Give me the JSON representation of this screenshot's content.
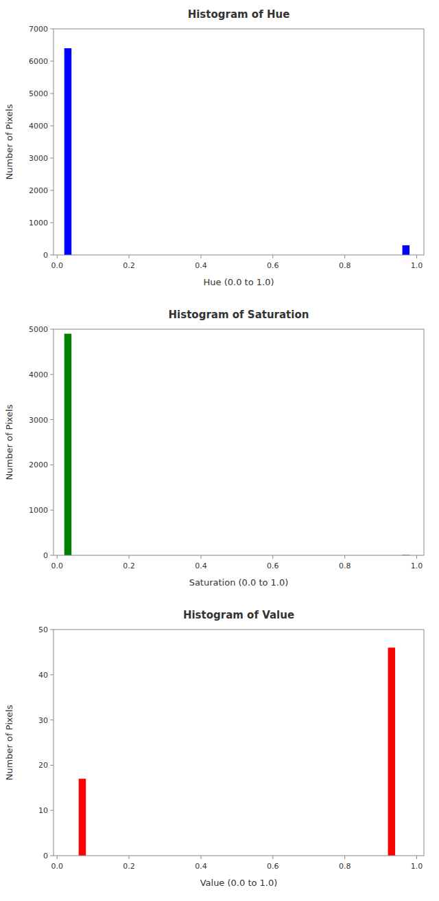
{
  "chart_data": [
    {
      "type": "histogram",
      "title": "Histogram of Hue",
      "xlabel": "Hue (0.0 to 1.0)",
      "ylabel": "Number of Pixels",
      "color": "#0000ff",
      "bins": [
        0,
        0.02,
        0.04,
        0.06,
        0.08,
        0.1,
        0.12,
        0.14,
        0.16,
        0.18,
        0.2,
        0.22,
        0.24,
        0.26,
        0.28,
        0.3,
        0.32,
        0.34,
        0.36,
        0.38,
        0.4,
        0.42,
        0.44,
        0.46,
        0.48,
        0.5,
        0.52,
        0.54,
        0.56,
        0.58,
        0.6,
        0.62,
        0.64,
        0.66,
        0.68,
        0.7,
        0.72,
        0.74,
        0.76,
        0.78,
        0.8,
        0.82,
        0.84,
        0.86,
        0.88,
        0.9,
        0.92,
        0.94,
        0.96,
        0.98,
        1
      ],
      "values": [
        0,
        6400,
        0,
        0,
        0,
        0,
        0,
        0,
        0,
        0,
        0,
        0,
        0,
        0,
        0,
        0,
        0,
        0,
        0,
        0,
        0,
        0,
        0,
        0,
        0,
        0,
        0,
        0,
        0,
        0,
        0,
        0,
        0,
        0,
        0,
        0,
        0,
        0,
        0,
        0,
        0,
        0,
        0,
        0,
        0,
        0,
        0,
        0,
        300,
        0
      ],
      "xlim": [
        -0.01,
        1.02
      ],
      "xticks": [
        {
          "value": 0,
          "label": "0.0"
        },
        0.2,
        0.4,
        0.6,
        0.8,
        {
          "value": 1,
          "label": "1.0"
        }
      ],
      "ylim": [
        0,
        7000
      ],
      "yticks": [
        0,
        1000,
        2000,
        3000,
        4000,
        5000,
        6000,
        7000
      ],
      "grid": false
    },
    {
      "type": "histogram",
      "title": "Histogram of Saturation",
      "xlabel": "Saturation (0.0 to 1.0)",
      "ylabel": "Number of Pixels",
      "color": "#008000",
      "bins": [
        0,
        0.02,
        0.04,
        0.06,
        0.08,
        0.1,
        0.12,
        0.14,
        0.16,
        0.18,
        0.2,
        0.22,
        0.24,
        0.26,
        0.28,
        0.3,
        0.32,
        0.34,
        0.36,
        0.38,
        0.4,
        0.42,
        0.44,
        0.46,
        0.48,
        0.5,
        0.52,
        0.54,
        0.56,
        0.58,
        0.6,
        0.62,
        0.64,
        0.66,
        0.68,
        0.7,
        0.72,
        0.74,
        0.76,
        0.78,
        0.8,
        0.82,
        0.84,
        0.86,
        0.88,
        0.9,
        0.92,
        0.94,
        0.96,
        0.98,
        1
      ],
      "values": [
        0,
        4900,
        0,
        0,
        0,
        0,
        0,
        0,
        0,
        0,
        0,
        0,
        0,
        0,
        0,
        0,
        0,
        0,
        0,
        0,
        0,
        0,
        0,
        0,
        0,
        0,
        0,
        0,
        0,
        0,
        0,
        0,
        0,
        0,
        0,
        0,
        0,
        0,
        0,
        0,
        0,
        0,
        0,
        0,
        0,
        0,
        0,
        0,
        10,
        0
      ],
      "xlim": [
        -0.01,
        1.02
      ],
      "xticks": [
        {
          "value": 0,
          "label": "0.0"
        },
        0.2,
        0.4,
        0.6,
        0.8,
        {
          "value": 1,
          "label": "1.0"
        }
      ],
      "ylim": [
        0,
        5000
      ],
      "yticks": [
        0,
        1000,
        2000,
        3000,
        4000,
        5000
      ],
      "grid": false
    },
    {
      "type": "histogram",
      "title": "Histogram of Value",
      "xlabel": "Value (0.0 to 1.0)",
      "ylabel": "Number of Pixels",
      "color": "#ff0000",
      "bins": [
        0,
        0.02,
        0.04,
        0.06,
        0.08,
        0.1,
        0.12,
        0.14,
        0.16,
        0.18,
        0.2,
        0.22,
        0.24,
        0.26,
        0.28,
        0.3,
        0.32,
        0.34,
        0.36,
        0.38,
        0.4,
        0.42,
        0.44,
        0.46,
        0.48,
        0.5,
        0.52,
        0.54,
        0.56,
        0.58,
        0.6,
        0.62,
        0.64,
        0.66,
        0.68,
        0.7,
        0.72,
        0.74,
        0.76,
        0.78,
        0.8,
        0.82,
        0.84,
        0.86,
        0.88,
        0.9,
        0.92,
        0.94,
        0.96,
        0.98,
        1
      ],
      "values": [
        0,
        0,
        0,
        17,
        0,
        0,
        0,
        0,
        0,
        0,
        0,
        0,
        0,
        0,
        0,
        0,
        0,
        0,
        0,
        0,
        0,
        0,
        0,
        0,
        0,
        0,
        0,
        0,
        0,
        0,
        0,
        0,
        0,
        0,
        0,
        0,
        0,
        0,
        0,
        0,
        0,
        0,
        0,
        0,
        0,
        0,
        46,
        0,
        0,
        0
      ],
      "xlim": [
        -0.01,
        1.02
      ],
      "xticks": [
        {
          "value": 0,
          "label": "0.0"
        },
        0.2,
        0.4,
        0.6,
        0.8,
        {
          "value": 1,
          "label": "1.0"
        }
      ],
      "ylim": [
        0,
        50
      ],
      "yticks": [
        0,
        10,
        20,
        30,
        40,
        50
      ],
      "grid": false
    }
  ]
}
